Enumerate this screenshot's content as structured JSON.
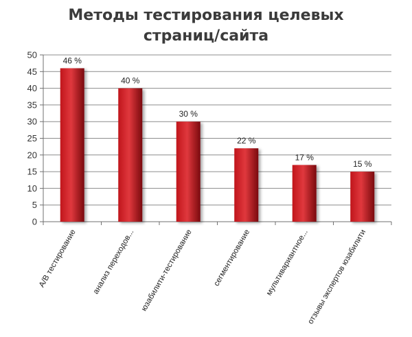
{
  "chart_data": {
    "type": "bar",
    "title_lines": [
      "Методы тестирования целевых",
      "страниц/сайта"
    ],
    "categories": [
      "A/B тестирование",
      "анализ переходов...",
      "юзабилити-тестирование",
      "сегментирование",
      "мультивариантное...",
      "отзывы экспертов юзабилити"
    ],
    "values": [
      46,
      40,
      30,
      22,
      17,
      15
    ],
    "data_labels": [
      "46 %",
      "40 %",
      "30 %",
      "22 %",
      "17 %",
      "15 %"
    ],
    "y_ticks": [
      "0",
      "5",
      "10",
      "15",
      "20",
      "25",
      "30",
      "35",
      "40",
      "45",
      "50"
    ],
    "ylim": [
      0,
      50
    ],
    "ystep": 5,
    "grid": true,
    "legend": "none",
    "colors": {
      "bar": "#c0161c",
      "bar_light": "#e0383d",
      "bar_dark": "#7a0a0e",
      "grid": "#8c8c8c",
      "axis": "#6f6f6f"
    }
  }
}
